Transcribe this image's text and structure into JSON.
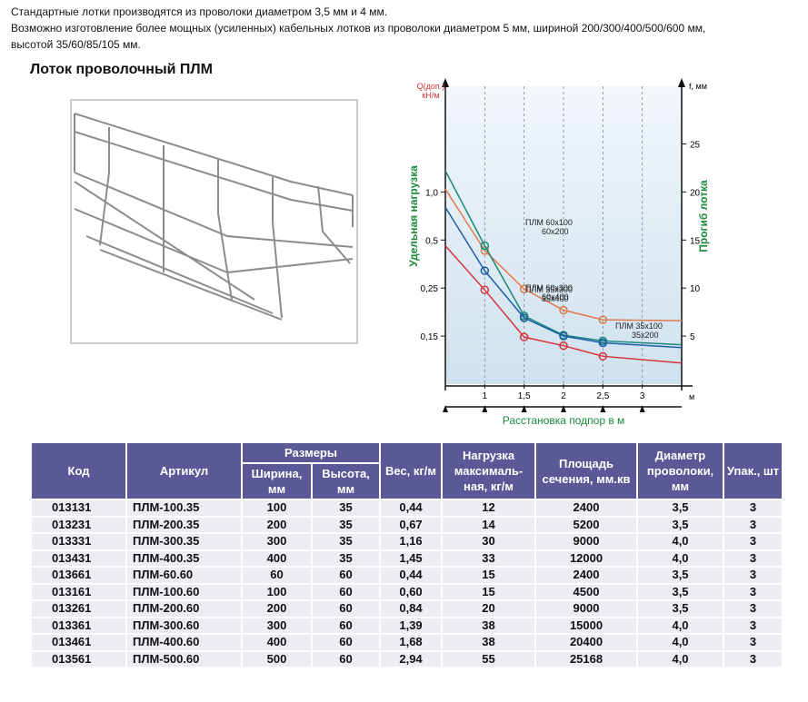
{
  "intro": [
    "Стандартные лотки производятся из проволоки диаметром 3,5 мм и 4 мм.",
    "Возможно изготовление более мощных (усиленных) кабельных лотков из проволоки диаметром 5 мм, шириной 200/300/400/500/600 мм,",
    "высотой 35/60/85/105 мм."
  ],
  "title": "Лоток проволочный ПЛМ",
  "chart_data": {
    "type": "line",
    "y_label_top": "Q(доп.)",
    "y_label_unit": "кН/м",
    "y_label": "Удельная нагрузка",
    "y_left_ticks": [
      "0,15",
      "0,25",
      "0,5",
      "1,0"
    ],
    "y2_label_top": "f, мм",
    "y2_label": "Прогиб лотка",
    "x_unit": "м",
    "x_label": "Расстановка подпор в м",
    "x": [
      0.5,
      1,
      1.5,
      2,
      2.5,
      3.5
    ],
    "xlim": [
      0.5,
      3.5
    ],
    "xticks": [
      1,
      {
        "value": 1.5,
        "label": "1,5"
      },
      2,
      {
        "value": 2.5,
        "label": "2,5"
      },
      3
    ],
    "ylim": [
      0,
      31
    ],
    "yticks": [
      5,
      10,
      15,
      20,
      25
    ],
    "grid": true,
    "series": [
      {
        "color": "#e07a4a",
        "values": [
          20.3,
          13.9,
          9.9,
          7.7,
          6.7,
          6.6
        ]
      },
      {
        "color": "#1a8a78",
        "values": [
          22.2,
          14.4,
          7.1,
          5.1,
          4.5,
          4.1
        ]
      },
      {
        "color": "#1f5ea8",
        "values": [
          18.4,
          11.8,
          6.9,
          5.0,
          4.3,
          3.8
        ]
      },
      {
        "color": "#d9343a",
        "values": [
          14.4,
          9.8,
          4.9,
          4.0,
          2.9,
          2.2
        ]
      }
    ],
    "annotations": [
      [
        "ПЛМ 60х100",
        "60х200"
      ],
      [
        "ПЛМ 60х300",
        "60х400"
      ],
      [
        "ПЛМ 35х300",
        "35х400"
      ],
      [
        "ПЛМ 35х100",
        "35х200"
      ]
    ]
  },
  "table": {
    "headers": [
      "Код",
      "Артикул",
      "Размеры",
      "Вес, кг/м",
      "Нагрузка максималь-ная, кг/м",
      "Площадь сечения, мм.кв",
      "Диаметр проволоки, мм",
      "Упак., шт"
    ],
    "subheaders": [
      "Ширина, мм",
      "Высота, мм"
    ],
    "rows": [
      [
        "013131",
        "ПЛМ-100.35",
        "100",
        "35",
        "0,44",
        "12",
        "2400",
        "3,5",
        "3"
      ],
      [
        "013231",
        "ПЛМ-200.35",
        "200",
        "35",
        "0,67",
        "14",
        "5200",
        "3,5",
        "3"
      ],
      [
        "013331",
        "ПЛМ-300.35",
        "300",
        "35",
        "1,16",
        "30",
        "9000",
        "4,0",
        "3"
      ],
      [
        "013431",
        "ПЛМ-400.35",
        "400",
        "35",
        "1,45",
        "33",
        "12000",
        "4,0",
        "3"
      ],
      [
        "013661",
        "ПЛМ-60.60",
        "60",
        "60",
        "0,44",
        "15",
        "2400",
        "3,5",
        "3"
      ],
      [
        "013161",
        "ПЛМ-100.60",
        "100",
        "60",
        "0,60",
        "15",
        "4500",
        "3,5",
        "3"
      ],
      [
        "013261",
        "ПЛМ-200.60",
        "200",
        "60",
        "0,84",
        "20",
        "9000",
        "3,5",
        "3"
      ],
      [
        "013361",
        "ПЛМ-300.60",
        "300",
        "60",
        "1,39",
        "38",
        "15000",
        "4,0",
        "3"
      ],
      [
        "013461",
        "ПЛМ-400.60",
        "400",
        "60",
        "1,68",
        "38",
        "20400",
        "4,0",
        "3"
      ],
      [
        "013561",
        "ПЛМ-500.60",
        "500",
        "60",
        "2,94",
        "55",
        "25168",
        "4,0",
        "3"
      ]
    ]
  }
}
